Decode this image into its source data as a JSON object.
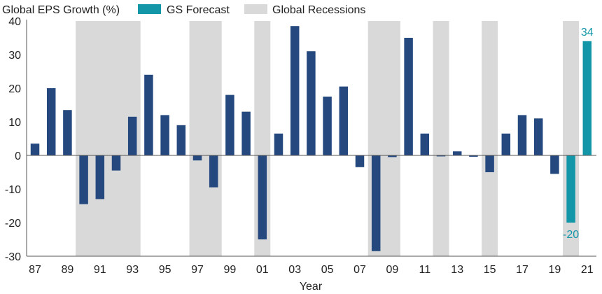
{
  "chart_data": {
    "type": "bar",
    "ylabel": "Global EPS Growth (%)",
    "xlabel": "Year",
    "ylim": [
      -30,
      40
    ],
    "yticks": [
      40,
      30,
      20,
      10,
      0,
      -10,
      -20,
      -30
    ],
    "years": [
      "87",
      "88",
      "89",
      "90",
      "91",
      "92",
      "93",
      "94",
      "95",
      "96",
      "97",
      "98",
      "99",
      "00",
      "01",
      "02",
      "03",
      "04",
      "05",
      "06",
      "07",
      "08",
      "09",
      "10",
      "11",
      "12",
      "13",
      "14",
      "15",
      "16",
      "17",
      "18",
      "19",
      "20",
      "21"
    ],
    "xtick_labels": [
      "87",
      "89",
      "91",
      "93",
      "95",
      "97",
      "99",
      "01",
      "03",
      "05",
      "07",
      "09",
      "11",
      "13",
      "15",
      "17",
      "19",
      "21"
    ],
    "values": [
      3.5,
      20,
      13.5,
      -14.5,
      -13,
      -4.5,
      11.5,
      24,
      12,
      9,
      -1.5,
      -9.5,
      18,
      13,
      -25,
      6.5,
      38.5,
      31,
      17.5,
      20.5,
      -3.5,
      -28.5,
      -0.5,
      35,
      6.5,
      -0.3,
      1.2,
      -0.4,
      -5,
      6.5,
      12,
      11,
      -5.5,
      -20,
      34
    ],
    "forecast_years": [
      "20",
      "21"
    ],
    "recession_spans": [
      [
        "90",
        "93"
      ],
      [
        "97",
        "98"
      ],
      [
        "01",
        "01"
      ],
      [
        "08",
        "09"
      ],
      [
        "12",
        "12"
      ],
      [
        "15",
        "15"
      ],
      [
        "20",
        "20"
      ]
    ],
    "data_labels": [
      {
        "year": "21",
        "text": "34"
      },
      {
        "year": "20",
        "text": "-20"
      }
    ],
    "legend": [
      {
        "name": "GS Forecast",
        "color": "#1396a8"
      },
      {
        "name": "Global Recessions",
        "color": "#d9d9d9"
      }
    ],
    "colors": {
      "historical": "#25497e",
      "forecast": "#1396a8",
      "recession": "#d9d9d9",
      "axis": "#555555"
    }
  }
}
